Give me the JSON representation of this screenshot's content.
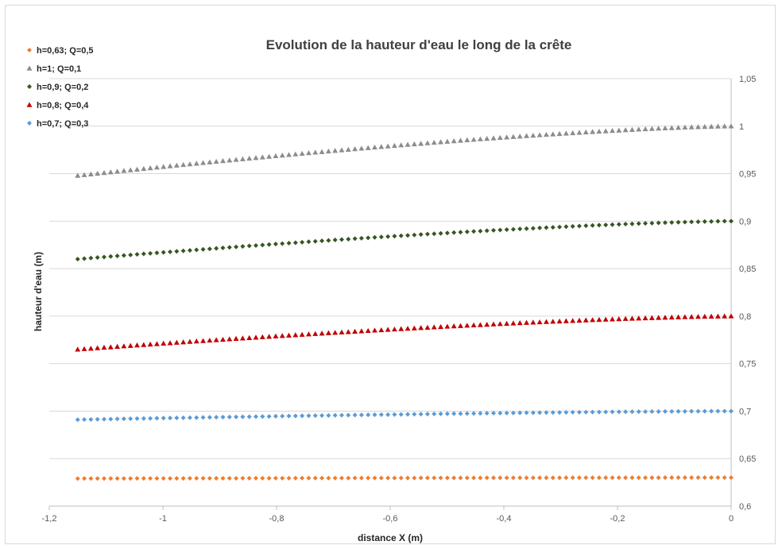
{
  "chart_data": {
    "type": "scatter",
    "title": "Evolution de la hauteur d'eau le long de la crête",
    "xlabel": "distance X (m)",
    "ylabel": "hauteur d'eau (m)",
    "xlim": [
      -1.2,
      0
    ],
    "ylim": [
      0.6,
      1.05
    ],
    "x_ticks": [
      -1.2,
      -1,
      -0.8,
      -0.6,
      -0.4,
      -0.2,
      0
    ],
    "x_tick_labels": [
      "-1,2",
      "-1",
      "-0,8",
      "-0,6",
      "-0,4",
      "-0,2",
      "0"
    ],
    "y_ticks": [
      0.6,
      0.65,
      0.7,
      0.75,
      0.8,
      0.85,
      0.9,
      0.95,
      1,
      1.05
    ],
    "y_tick_labels": [
      "0,6",
      "0,65",
      "0,7",
      "0,75",
      "0,8",
      "0,85",
      "0,9",
      "0,95",
      "1",
      "1,05"
    ],
    "y_axis_side": "right",
    "grid": "horizontal",
    "legend_position": "top-left",
    "x_range": [
      -1.15,
      0
    ],
    "point_count": 100,
    "series": [
      {
        "name": "h=0,63; Q=0,5",
        "marker": "diamond",
        "color": "#ed7d31",
        "y_start": 0.629,
        "y_end": 0.63
      },
      {
        "name": "h=1; Q=0,1",
        "marker": "triangle",
        "color": "#8c8c8c",
        "y_start": 0.948,
        "y_end": 1.0
      },
      {
        "name": "h=0,9; Q=0,2",
        "marker": "diamond",
        "color": "#375623",
        "y_start": 0.86,
        "y_end": 0.9
      },
      {
        "name": "h=0,8; Q=0,4",
        "marker": "triangle",
        "color": "#c00000",
        "y_start": 0.765,
        "y_end": 0.8
      },
      {
        "name": "h=0,7; Q=0,3",
        "marker": "diamond",
        "color": "#5b9bd5",
        "y_start": 0.691,
        "y_end": 0.7
      }
    ]
  }
}
